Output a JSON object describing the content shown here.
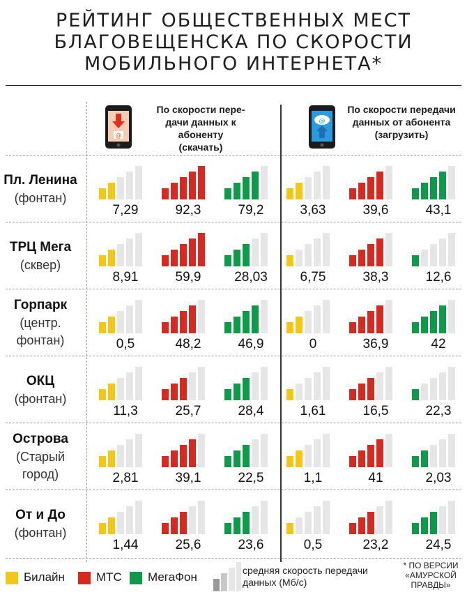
{
  "title": {
    "lines": [
      "РЕЙТИНГ ОБЩЕСТВЕННЫХ МЕСТ",
      "БЛАГОВЕЩЕНСКА ПО СКОРОСТИ",
      "МОБИЛЬНОГО ИНТЕРНЕТА*"
    ]
  },
  "headers": {
    "download": [
      "По скорости пере-",
      "дачи данных к абоненту",
      "(скачать)"
    ],
    "upload": [
      "По скорости передачи",
      "данных от абонента",
      "(загрузить)"
    ]
  },
  "colors": {
    "beeline": "#f5c518",
    "mts": "#d42a21",
    "megafon": "#0e9a48",
    "inactive": "#e6e6e6"
  },
  "chart_data": {
    "type": "table",
    "operators": [
      "Билайн",
      "МТС",
      "МегаФон"
    ],
    "metrics": [
      "download",
      "upload"
    ],
    "unit": "Мб/с",
    "rows": [
      {
        "name": "Пл. Ленина",
        "sub": "(фонтан)",
        "download": {
          "values": [
            "7,29",
            "92,3",
            "79,2"
          ],
          "levels": [
            1,
            4,
            3
          ]
        },
        "upload": {
          "values": [
            "3,63",
            "39,6",
            "43,1"
          ],
          "levels": [
            1,
            3,
            3
          ]
        }
      },
      {
        "name": "ТРЦ Мега",
        "sub": "(сквер)",
        "download": {
          "values": [
            "8,91",
            "59,9",
            "28,03"
          ],
          "levels": [
            1,
            4,
            2
          ]
        },
        "upload": {
          "values": [
            "6,75",
            "38,3",
            "12,6"
          ],
          "levels": [
            0,
            3,
            0
          ]
        }
      },
      {
        "name": "Горпарк",
        "sub": "(центр.",
        "sub2": "фонтан)",
        "download": {
          "values": [
            "0,5",
            "48,2",
            "46,9"
          ],
          "levels": [
            1,
            3,
            3
          ]
        },
        "upload": {
          "values": [
            "0",
            "36,9",
            "42"
          ],
          "levels": [
            1,
            3,
            3
          ]
        }
      },
      {
        "name": "ОКЦ",
        "sub": "(фонтан)",
        "download": {
          "values": [
            "11,3",
            "25,7",
            "28,4"
          ],
          "levels": [
            1,
            2,
            2
          ]
        },
        "upload": {
          "values": [
            "1,61",
            "16,5",
            "22,3"
          ],
          "levels": [
            0,
            2,
            0
          ]
        }
      },
      {
        "name": "Острова",
        "sub": "(Старый",
        "sub2": "город)",
        "download": {
          "values": [
            "2,81",
            "39,1",
            "22,5"
          ],
          "levels": [
            1,
            3,
            2
          ]
        },
        "upload": {
          "values": [
            "1,1",
            "41",
            "2,03"
          ],
          "levels": [
            1,
            3,
            1
          ]
        }
      },
      {
        "name": "От и До",
        "sub": "(фонтан)",
        "download": {
          "values": [
            "1,44",
            "25,6",
            "23,6"
          ],
          "levels": [
            1,
            2,
            2
          ]
        },
        "upload": {
          "values": [
            "0,5",
            "23,2",
            "24,5"
          ],
          "levels": [
            0,
            2,
            2
          ]
        }
      }
    ]
  },
  "legend": {
    "beeline": "Билайн",
    "mts": "МТС",
    "megafon": "МегаФон",
    "avg": [
      "средняя скорость передачи",
      "данных (Мб/с)"
    ]
  },
  "footnote": [
    "* ПО ВЕРСИИ",
    "«АМУРСКОЙ",
    "ПРАВДЫ»"
  ]
}
